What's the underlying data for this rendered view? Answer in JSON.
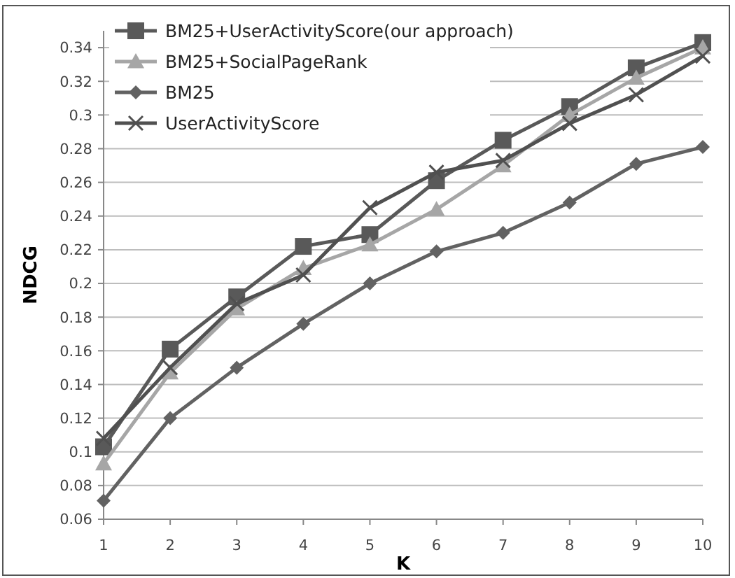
{
  "chart_data": {
    "type": "line",
    "xlabel": "K",
    "ylabel": "NDCG",
    "x": [
      1,
      2,
      3,
      4,
      5,
      6,
      7,
      8,
      9,
      10
    ],
    "xlim": [
      1,
      10
    ],
    "xticks": [
      1,
      2,
      3,
      4,
      5,
      6,
      7,
      8,
      9,
      10
    ],
    "ylim": [
      0.06,
      0.35
    ],
    "yticks": [
      0.06,
      0.08,
      0.1,
      0.12,
      0.14,
      0.16,
      0.18,
      0.2,
      0.22,
      0.24,
      0.26,
      0.28,
      0.3,
      0.32,
      0.34
    ],
    "grid": "y",
    "legend": "top left",
    "series": [
      {
        "name": "BM25+UserActivityScore(our approach)",
        "color": "#595959",
        "marker": "square",
        "values": [
          0.103,
          0.161,
          0.192,
          0.222,
          0.229,
          0.261,
          0.285,
          0.305,
          0.328,
          0.343
        ]
      },
      {
        "name": "BM25+SocialPageRank",
        "color": "#a6a6a6",
        "marker": "triangle",
        "values": [
          0.093,
          0.147,
          0.185,
          0.209,
          0.223,
          0.244,
          0.27,
          0.3,
          0.322,
          0.34
        ]
      },
      {
        "name": "BM25",
        "color": "#626262",
        "marker": "diamond",
        "values": [
          0.071,
          0.12,
          0.15,
          0.176,
          0.2,
          0.219,
          0.23,
          0.248,
          0.271,
          0.281
        ]
      },
      {
        "name": "UserActivityScore",
        "color": "#505050",
        "marker": "cross",
        "values": [
          0.108,
          0.15,
          0.188,
          0.205,
          0.245,
          0.266,
          0.273,
          0.295,
          0.312,
          0.335
        ]
      }
    ]
  }
}
